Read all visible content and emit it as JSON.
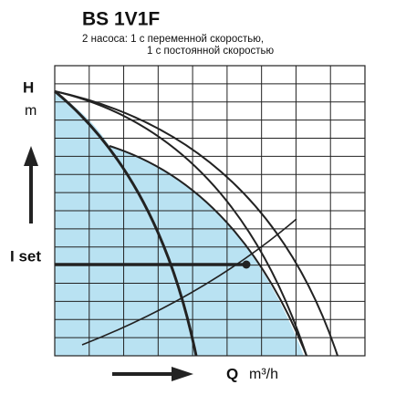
{
  "title": "BS 1V1F",
  "subtitle": [
    "2 насоса:  1 с переменной скоростью,",
    "1 с постоянной скоростью"
  ],
  "y_axis": {
    "label": "H",
    "unit": "m"
  },
  "setpoint_label": "I set",
  "x_axis": {
    "label": "Q",
    "unit": "m³/h"
  }
}
